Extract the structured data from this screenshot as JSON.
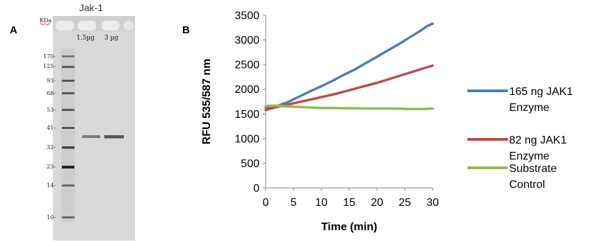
{
  "panels": {
    "a_label": "A",
    "b_label": "B"
  },
  "gel": {
    "title": "Jak-1",
    "unit_label": "KDa",
    "lane_labels": [
      "1.5µg",
      "3 µg"
    ],
    "markers": [
      "170-",
      "125-",
      "93-",
      "68-",
      "53-",
      "41-",
      "32-",
      "23-",
      "14-",
      "10-"
    ]
  },
  "chart_data": {
    "type": "line",
    "title": "",
    "xlabel": "Time (min)",
    "ylabel": "RFU 535/587 nm",
    "xlim": [
      0,
      30
    ],
    "ylim": [
      0,
      3500
    ],
    "x_ticks": [
      0,
      5,
      10,
      15,
      20,
      25,
      30
    ],
    "y_ticks": [
      0,
      500,
      1000,
      1500,
      2000,
      2500,
      3000,
      3500
    ],
    "grid": false,
    "legend_position": "right",
    "series": [
      {
        "name": "165 ng JAK1 Enzyme",
        "legend_lines": [
          "165 ng JAK1",
          "Enzyme"
        ],
        "color": "#4a7ebb",
        "x": [
          0,
          2,
          4,
          6,
          8,
          10,
          12,
          14,
          16,
          18,
          20,
          22,
          24,
          26,
          28,
          29,
          30
        ],
        "y": [
          1620,
          1660,
          1740,
          1850,
          1960,
          2060,
          2170,
          2290,
          2400,
          2530,
          2660,
          2790,
          2920,
          3060,
          3200,
          3280,
          3330
        ]
      },
      {
        "name": "82 ng JAK1 Enzyme",
        "legend_lines": [
          "82 ng JAK1",
          "Enzyme"
        ],
        "color": "#be4b48",
        "x": [
          0,
          2,
          4,
          6,
          8,
          10,
          12,
          14,
          16,
          18,
          20,
          22,
          24,
          26,
          28,
          30
        ],
        "y": [
          1580,
          1640,
          1690,
          1740,
          1790,
          1840,
          1890,
          1950,
          2010,
          2070,
          2130,
          2200,
          2270,
          2340,
          2410,
          2480
        ]
      },
      {
        "name": "Substrate Control",
        "legend_lines": [
          "Substrate",
          "Control"
        ],
        "color": "#98b954",
        "x": [
          0,
          2,
          4,
          6,
          8,
          10,
          12,
          14,
          16,
          18,
          20,
          22,
          24,
          26,
          28,
          30
        ],
        "y": [
          1660,
          1670,
          1650,
          1640,
          1630,
          1620,
          1620,
          1615,
          1615,
          1610,
          1610,
          1610,
          1605,
          1600,
          1600,
          1610
        ]
      }
    ]
  }
}
